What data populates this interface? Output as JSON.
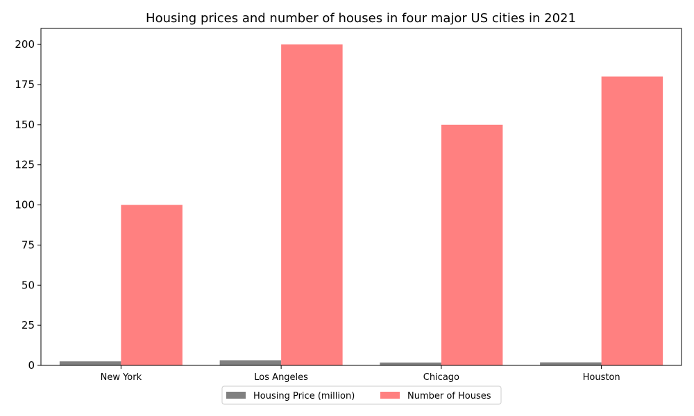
{
  "chart_data": {
    "type": "bar",
    "title": "Housing prices and number of houses in four major US cities in 2021",
    "xlabel": "",
    "ylabel": "",
    "categories": [
      "New York",
      "Los Angeles",
      "Chicago",
      "Houston"
    ],
    "series": [
      {
        "name": "Housing Price (million)",
        "values": [
          2.5,
          3.2,
          1.8,
          1.9
        ],
        "color": "#808080"
      },
      {
        "name": "Number of Houses",
        "values": [
          100,
          200,
          150,
          180
        ],
        "color": "#ff8080"
      }
    ],
    "ylim": [
      0,
      210
    ],
    "yticks": [
      0,
      25,
      50,
      75,
      100,
      125,
      150,
      175,
      200
    ],
    "grid": false,
    "legend_position": "bottom-center"
  }
}
